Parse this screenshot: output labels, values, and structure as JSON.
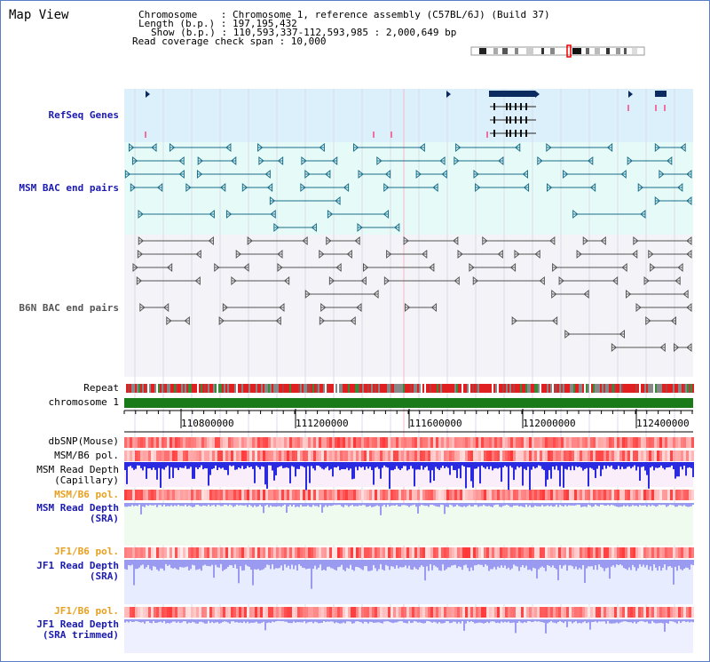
{
  "title": "Map View",
  "info": {
    "chromosome_line": "Chromosome    : Chromosome 1, reference assembly (C57BL/6J) (Build 37)",
    "length_line": "Length (b.p.) : 197,195,432",
    "show_line": "Show (b.p.) : 110,593,337-112,593,985 : 2,000,649 bp",
    "read_line": "Read coverage check span : 10,000"
  },
  "track_labels": {
    "refseq": "RefSeq Genes",
    "msm_bac": "MSM BAC end pairs",
    "b6n_bac": "B6N BAC end pairs",
    "repeat": "Repeat",
    "chromosome": "chromosome 1",
    "dbsnp": "dbSNP(Mouse)",
    "msm_b6_pol_1": "MSM/B6 pol.",
    "msm_read_depth_cap_1": "MSM Read Depth",
    "msm_read_depth_cap_2": "(Capillary)",
    "msm_b6_pol_2": "MSM/B6 pol.",
    "msm_read_depth_sra_1": "MSM Read Depth",
    "msm_read_depth_sra_2": "(SRA)",
    "jf1_b6_pol_1": "JF1/B6 pol.",
    "jf1_read_depth_1": "JF1 Read Depth",
    "jf1_read_depth_2": "(SRA)",
    "jf1_b6_pol_2": "JF1/B6 pol.",
    "jf1_trim_1": "JF1 Read Depth",
    "jf1_trim_2": "(SRA trimmed)"
  },
  "axis_ticks": [
    "110800000",
    "111200000",
    "111600000",
    "112000000",
    "112400000"
  ],
  "colors": {
    "refseq_bg": "#dcf0fb",
    "msm_bg": "#e6fbf8",
    "b6n_bg": "#f4f4f8",
    "gene": "#0a2a60",
    "msm_feature": "#1a6e8a",
    "b6n_feature": "#555555",
    "chromosome": "#1a7a1a",
    "depth_blue": "#2a2ae0",
    "depth_light": "#9a9af0",
    "pol_red": "#e02020",
    "capillary_bg": "#fbeefb",
    "sra_bg": "#eefbee"
  }
}
